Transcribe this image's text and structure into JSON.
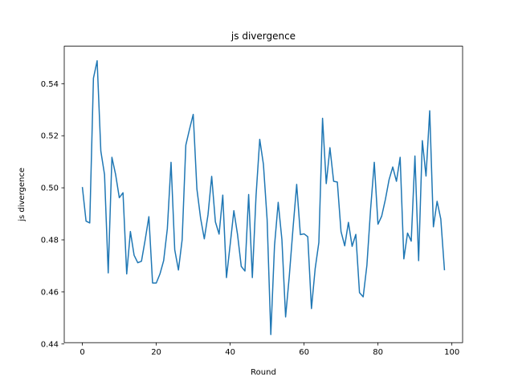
{
  "chart_data": {
    "type": "line",
    "title": "js divergence",
    "xlabel": "Round",
    "ylabel": "js divergence",
    "xlim": [
      -4.9,
      102.9
    ],
    "ylim": [
      0.4405,
      0.5544
    ],
    "xticks": [
      0,
      20,
      40,
      60,
      80,
      100
    ],
    "yticks": [
      0.44,
      0.46,
      0.48,
      0.5,
      0.52,
      0.54
    ],
    "xtick_labels": [
      "0",
      "20",
      "40",
      "60",
      "80",
      "100"
    ],
    "ytick_labels": [
      "0.44",
      "0.46",
      "0.48",
      "0.50",
      "0.52",
      "0.54"
    ],
    "grid": false,
    "color": "#1f77b4",
    "series": [
      {
        "x": [
          0,
          1,
          2,
          3,
          4,
          5,
          6,
          7,
          8,
          9,
          10,
          11,
          12,
          13,
          14,
          15,
          16,
          17,
          18,
          19,
          20,
          21,
          22,
          23,
          24,
          25,
          26,
          27,
          28,
          29,
          30,
          31,
          32,
          33,
          34,
          35,
          36,
          37,
          38,
          39,
          40,
          41,
          42,
          43,
          44,
          45,
          46,
          47,
          48,
          49,
          50,
          51,
          52,
          53,
          54,
          55,
          56,
          57,
          58,
          59,
          60,
          61,
          62,
          63,
          64,
          65,
          66,
          67,
          68,
          69,
          70,
          71,
          72,
          73,
          74,
          75,
          76,
          77,
          78,
          79,
          80,
          81,
          82,
          83,
          84,
          85,
          86,
          87,
          88,
          89,
          90,
          91,
          92,
          93,
          94,
          95,
          96,
          97,
          98
        ],
        "values": [
          0.5003,
          0.4872,
          0.4865,
          0.5421,
          0.5488,
          0.5141,
          0.5051,
          0.4673,
          0.5117,
          0.5051,
          0.4962,
          0.4981,
          0.4669,
          0.4832,
          0.4741,
          0.4712,
          0.4718,
          0.48,
          0.4889,
          0.4634,
          0.4634,
          0.4669,
          0.472,
          0.4843,
          0.5098,
          0.4762,
          0.4684,
          0.48,
          0.5164,
          0.5225,
          0.5282,
          0.4995,
          0.4883,
          0.4804,
          0.4896,
          0.5044,
          0.4869,
          0.4822,
          0.4972,
          0.4655,
          0.4782,
          0.4912,
          0.482,
          0.4698,
          0.468,
          0.4974,
          0.4655,
          0.4969,
          0.5186,
          0.509,
          0.4878,
          0.4436,
          0.4777,
          0.4944,
          0.4801,
          0.4504,
          0.4661,
          0.4843,
          0.5013,
          0.482,
          0.4823,
          0.4812,
          0.4536,
          0.4689,
          0.479,
          0.5267,
          0.5016,
          0.5154,
          0.5025,
          0.5022,
          0.4832,
          0.4777,
          0.4867,
          0.4775,
          0.4821,
          0.4597,
          0.4581,
          0.4702,
          0.4917,
          0.5098,
          0.486,
          0.4891,
          0.4955,
          0.5031,
          0.508,
          0.5025,
          0.5117,
          0.4727,
          0.4826,
          0.4795,
          0.5122,
          0.472,
          0.5181,
          0.5045,
          0.5296,
          0.485,
          0.4948,
          0.488,
          0.4683
        ]
      }
    ]
  }
}
